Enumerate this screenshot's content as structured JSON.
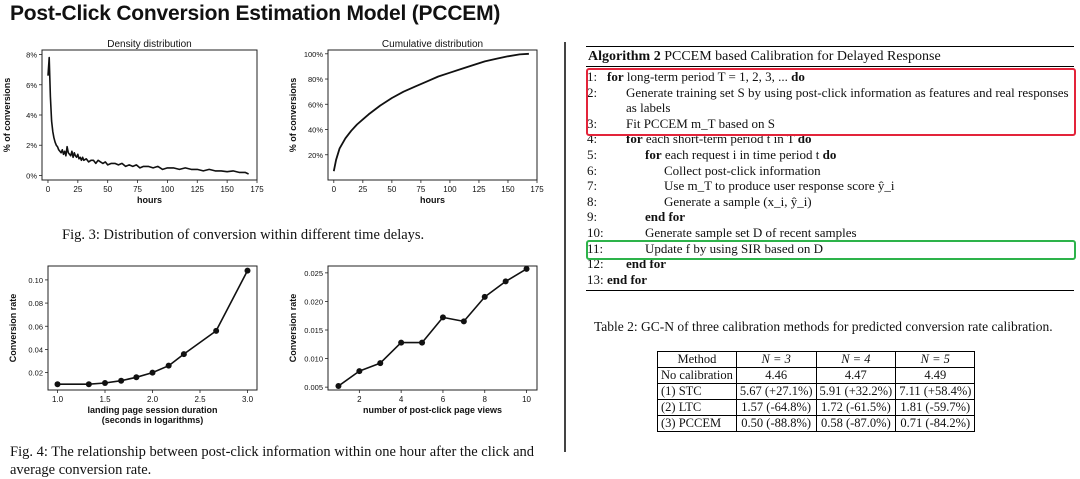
{
  "slide_title": "Post-Click Conversion Estimation Model (PCCEM)",
  "fig3_caption": "Fig. 3: Distribution of conversion within different time delays.",
  "fig4_caption": "Fig. 4: The relationship between post-click information within one hour after the click and average conversion rate.",
  "algorithm": {
    "title_bold": "Algorithm 2",
    "title_rest": "PCCEM based Calibration for Delayed Response",
    "lines": [
      {
        "no": "1:",
        "kw": "for",
        "text": "long-term period T = 1, 2, 3, ...",
        "kw2": "do",
        "indent": 0
      },
      {
        "no": "2:",
        "kw": "",
        "text": "Generate training set S by using post-click information as features and real responses as labels",
        "kw2": "",
        "indent": 1
      },
      {
        "no": "3:",
        "kw": "",
        "text": "Fit PCCEM m_T based on S",
        "kw2": "",
        "indent": 1
      },
      {
        "no": "4:",
        "kw": "for",
        "text": "each short-term period t in T",
        "kw2": "do",
        "indent": 1
      },
      {
        "no": "5:",
        "kw": "for",
        "text": "each request i in time period t",
        "kw2": "do",
        "indent": 2
      },
      {
        "no": "6:",
        "kw": "",
        "text": "Collect post-click information",
        "kw2": "",
        "indent": 3
      },
      {
        "no": "7:",
        "kw": "",
        "text": "Use m_T to produce user response score ŷ_i",
        "kw2": "",
        "indent": 3
      },
      {
        "no": "8:",
        "kw": "",
        "text": "Generate a sample (x_i, ŷ_i)",
        "kw2": "",
        "indent": 3
      },
      {
        "no": "9:",
        "kw": "end for",
        "text": "",
        "kw2": "",
        "indent": 2
      },
      {
        "no": "10:",
        "kw": "",
        "text": "Generate sample set D of recent samples",
        "kw2": "",
        "indent": 2
      },
      {
        "no": "11:",
        "kw": "",
        "text": "Update f by using SIR based on D",
        "kw2": "",
        "indent": 2
      },
      {
        "no": "12:",
        "kw": "end for",
        "text": "",
        "kw2": "",
        "indent": 1
      },
      {
        "no": "13:",
        "kw": "end for",
        "text": "",
        "kw2": "",
        "indent": 0
      }
    ]
  },
  "table2": {
    "caption": "Table 2: GC-N of three calibration methods for predicted conversion rate calibration.",
    "headers": [
      "Method",
      "N = 3",
      "N = 4",
      "N = 5"
    ],
    "rows": [
      [
        "No calibration",
        "4.46",
        "4.47",
        "4.49"
      ],
      [
        "(1) STC",
        "5.67 (+27.1%)",
        "5.91 (+32.2%)",
        "7.11 (+58.4%)"
      ],
      [
        "(2) LTC",
        "1.57 (-64.8%)",
        "1.72 (-61.5%)",
        "1.81 (-59.7%)"
      ],
      [
        "(3) PCCEM",
        "0.50 (-88.8%)",
        "0.58 (-87.0%)",
        "0.71 (-84.2%)"
      ]
    ]
  },
  "chart_data": [
    {
      "type": "line",
      "title": "Density distribution",
      "xlabel": "hours",
      "ylabel": "% of conversions",
      "xlim": [
        -5,
        175
      ],
      "ylim": [
        -0.3,
        8.3
      ],
      "xticks": [
        0,
        25,
        50,
        75,
        100,
        125,
        150,
        175
      ],
      "yticks": [
        0,
        2,
        4,
        6,
        8
      ],
      "ytick_labels": [
        "0%",
        "2%",
        "4%",
        "6%",
        "8%"
      ],
      "x": [
        0,
        1,
        2,
        3,
        4,
        5,
        6,
        7,
        8,
        9,
        10,
        11,
        12,
        13,
        14,
        15,
        16,
        17,
        18,
        19,
        20,
        21,
        22,
        23,
        24,
        25,
        26,
        27,
        28,
        29,
        30,
        32,
        34,
        36,
        38,
        40,
        42,
        44,
        46,
        48,
        50,
        53,
        56,
        59,
        62,
        65,
        68,
        71,
        74,
        77,
        80,
        84,
        88,
        92,
        96,
        100,
        105,
        110,
        115,
        120,
        125,
        130,
        135,
        140,
        145,
        150,
        155,
        160,
        165,
        168
      ],
      "y": [
        6.6,
        7.8,
        5.2,
        3.6,
        2.9,
        2.5,
        2.2,
        2.0,
        1.9,
        1.7,
        1.6,
        1.5,
        1.7,
        1.4,
        1.6,
        1.3,
        1.9,
        1.5,
        1.4,
        1.3,
        1.6,
        1.2,
        1.5,
        1.3,
        1.2,
        1.4,
        1.1,
        1.2,
        1.0,
        1.2,
        1.0,
        1.1,
        0.9,
        1.0,
        1.0,
        0.8,
        1.0,
        0.9,
        0.8,
        0.9,
        0.7,
        0.8,
        0.8,
        0.7,
        0.8,
        0.6,
        0.7,
        0.6,
        0.7,
        0.5,
        0.6,
        0.6,
        0.5,
        0.6,
        0.4,
        0.5,
        0.5,
        0.4,
        0.5,
        0.4,
        0.4,
        0.3,
        0.4,
        0.3,
        0.3,
        0.25,
        0.3,
        0.2,
        0.2,
        0.1
      ]
    },
    {
      "type": "line",
      "title": "Cumulative distribution",
      "xlabel": "hours",
      "ylabel": "% of conversions",
      "xlim": [
        -5,
        175
      ],
      "ylim": [
        0,
        103
      ],
      "xticks": [
        0,
        25,
        50,
        75,
        100,
        125,
        150,
        175
      ],
      "yticks": [
        20,
        40,
        60,
        80,
        100
      ],
      "ytick_labels": [
        "20%",
        "40%",
        "60%",
        "80%",
        "100%"
      ],
      "x": [
        0,
        2,
        5,
        10,
        15,
        20,
        25,
        30,
        40,
        50,
        60,
        70,
        80,
        90,
        100,
        110,
        120,
        130,
        140,
        150,
        160,
        168
      ],
      "y": [
        7,
        16,
        25,
        33,
        39,
        44,
        48,
        52,
        59,
        65,
        70,
        74,
        78,
        82,
        85,
        88,
        91,
        94,
        96,
        98,
        99.5,
        100
      ]
    },
    {
      "type": "line",
      "xlabel": "landing page session duration\n(seconds in logarithms)",
      "ylabel": "Conversion rate",
      "xlim": [
        0.9,
        3.1
      ],
      "ylim": [
        0.005,
        0.112
      ],
      "xticks": [
        1.0,
        1.5,
        2.0,
        2.5,
        3.0
      ],
      "xtick_labels": [
        "1.0",
        "1.5",
        "2.0",
        "2.5",
        "3.0"
      ],
      "yticks": [
        0.02,
        0.04,
        0.06,
        0.08,
        0.1
      ],
      "ytick_labels": [
        "0.02",
        "0.04",
        "0.06",
        "0.08",
        "0.10"
      ],
      "x": [
        1.0,
        1.33,
        1.5,
        1.67,
        1.83,
        2.0,
        2.17,
        2.33,
        2.67,
        3.0
      ],
      "y": [
        0.01,
        0.01,
        0.011,
        0.013,
        0.016,
        0.02,
        0.026,
        0.036,
        0.056,
        0.108
      ]
    },
    {
      "type": "line",
      "xlabel": "number of post-click page views",
      "ylabel": "Conversion rate",
      "xlim": [
        0.5,
        10.5
      ],
      "ylim": [
        0.0045,
        0.0262
      ],
      "xticks": [
        2,
        4,
        6,
        8,
        10
      ],
      "xtick_labels": [
        "2",
        "4",
        "6",
        "8",
        "10"
      ],
      "yticks": [
        0.005,
        0.01,
        0.015,
        0.02,
        0.025
      ],
      "ytick_labels": [
        "0.005",
        "0.010",
        "0.015",
        "0.020",
        "0.025"
      ],
      "x": [
        1,
        2,
        3,
        4,
        5,
        6,
        7,
        8,
        9,
        10
      ],
      "y": [
        0.0052,
        0.0078,
        0.0092,
        0.0128,
        0.0128,
        0.0172,
        0.0165,
        0.0208,
        0.0235,
        0.0257
      ]
    }
  ]
}
